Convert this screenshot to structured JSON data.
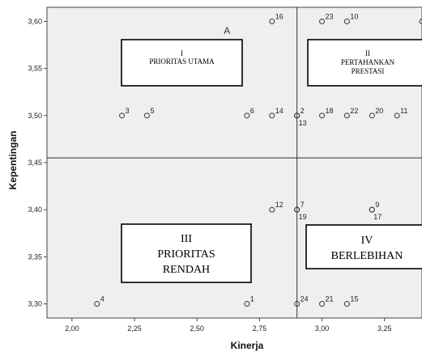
{
  "chart_data": {
    "type": "scatter",
    "xlabel": "Kinerja",
    "ylabel": "Kepentingan",
    "xlim": [
      1.9,
      3.4
    ],
    "ylim": [
      3.285,
      3.615
    ],
    "x_ticks": [
      "2,00",
      "2,25",
      "2,50",
      "2,75",
      "3,00",
      "3,25"
    ],
    "x_tick_values": [
      2.0,
      2.25,
      2.5,
      2.75,
      3.0,
      3.25
    ],
    "y_ticks": [
      "3,60",
      "3,55",
      "3,50",
      "3,45",
      "3,40",
      "3,35",
      "3,30"
    ],
    "y_tick_values": [
      3.6,
      3.55,
      3.5,
      3.45,
      3.4,
      3.35,
      3.3
    ],
    "reference_lines": {
      "x": 2.9,
      "y": 3.455
    },
    "points": [
      {
        "label": "1",
        "x": 2.7,
        "y": 3.3
      },
      {
        "label": "2",
        "x": 2.9,
        "y": 3.5
      },
      {
        "label": "3",
        "x": 2.2,
        "y": 3.5
      },
      {
        "label": "4",
        "x": 2.1,
        "y": 3.3
      },
      {
        "label": "5",
        "x": 2.3,
        "y": 3.5
      },
      {
        "label": "6",
        "x": 2.7,
        "y": 3.5
      },
      {
        "label": "7",
        "x": 2.9,
        "y": 3.4
      },
      {
        "label": "9",
        "x": 3.2,
        "y": 3.4
      },
      {
        "label": "10",
        "x": 3.1,
        "y": 3.6
      },
      {
        "label": "11",
        "x": 3.3,
        "y": 3.5
      },
      {
        "label": "12",
        "x": 2.8,
        "y": 3.4
      },
      {
        "label": "13",
        "x": 2.9,
        "y": 3.5
      },
      {
        "label": "14",
        "x": 2.8,
        "y": 3.5
      },
      {
        "label": "15",
        "x": 3.1,
        "y": 3.3
      },
      {
        "label": "16",
        "x": 2.8,
        "y": 3.6
      },
      {
        "label": "17",
        "x": 3.2,
        "y": 3.4
      },
      {
        "label": "18",
        "x": 3.0,
        "y": 3.5
      },
      {
        "label": "19",
        "x": 2.9,
        "y": 3.4
      },
      {
        "label": "20",
        "x": 3.2,
        "y": 3.5
      },
      {
        "label": "21",
        "x": 3.0,
        "y": 3.3
      },
      {
        "label": "22",
        "x": 3.1,
        "y": 3.5
      },
      {
        "label": "23",
        "x": 3.0,
        "y": 3.6
      },
      {
        "label": "24",
        "x": 2.9,
        "y": 3.3
      },
      {
        "label": "",
        "x": 3.4,
        "y": 3.6
      }
    ],
    "annotations": [
      {
        "text": "A",
        "x": 2.62,
        "y": 3.59
      }
    ],
    "quadrants": [
      {
        "id": "q1",
        "lines": [
          "I",
          "PRIORITAS UTAMA"
        ],
        "size": "small"
      },
      {
        "id": "q2",
        "lines": [
          "II",
          "PERTAHANKAN",
          "PRESTASI"
        ],
        "size": "small"
      },
      {
        "id": "q3",
        "lines": [
          "III",
          "PRIORITAS",
          "RENDAH"
        ],
        "size": "big"
      },
      {
        "id": "q4",
        "lines": [
          "IV",
          "BERLEBIHAN"
        ],
        "size": "big"
      }
    ],
    "colors": {
      "plot_bg": "#efefef",
      "marker": "#333333",
      "line": "#333333"
    }
  }
}
